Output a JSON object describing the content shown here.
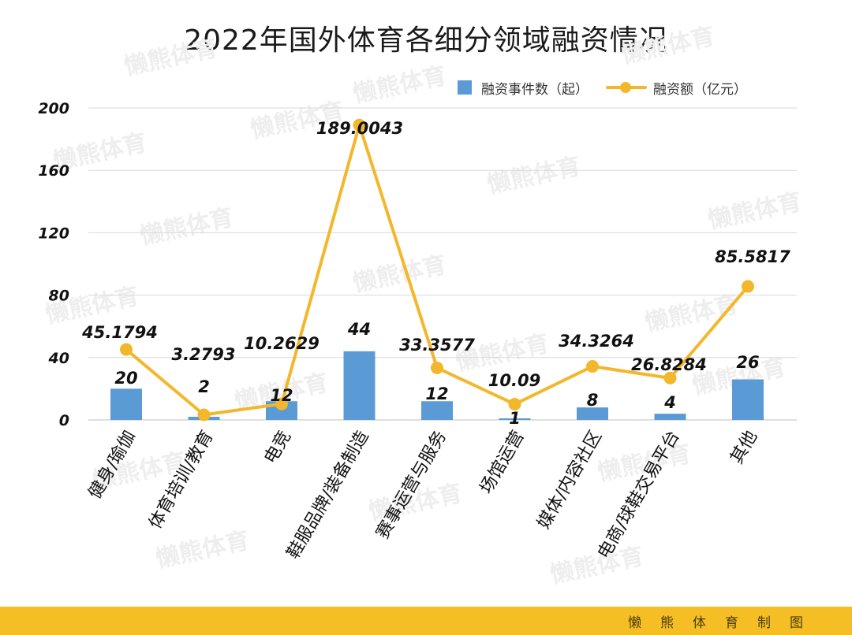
{
  "colors": {
    "bar": "#5b9bd5",
    "line": "#f3b72b",
    "grid": "#d9d9d9",
    "footer_bg": "#f5be24",
    "watermark": "#eeeeee"
  },
  "footer": {
    "credit": "懒熊体育制图"
  },
  "watermark": {
    "text": "懒熊体育"
  },
  "chart_data": {
    "type": "bar",
    "title": "2022年国外体育各细分领域融资情况",
    "legend_position": "top-right",
    "grid": true,
    "ylim": [
      0,
      200
    ],
    "yticks": [
      "0",
      "40",
      "80",
      "120",
      "160",
      "200"
    ],
    "categories": [
      "健身/瑜伽",
      "体育培训/教育",
      "电竞",
      "鞋服品牌/装备制造",
      "赛事运营与服务",
      "场馆运营",
      "媒体/内容社区",
      "电商/球鞋交易平台",
      "其他"
    ],
    "series": [
      {
        "name": "融资事件数（起）",
        "type": "bar",
        "values": [
          20,
          2,
          12,
          44,
          12,
          1,
          8,
          4,
          26
        ],
        "labels": [
          "20",
          "2",
          "12",
          "44",
          "12",
          "1",
          "8",
          "4",
          "26"
        ]
      },
      {
        "name": "融资额（亿元）",
        "type": "line",
        "values": [
          45.1794,
          3.2793,
          10.2629,
          189.0043,
          33.3577,
          10.09,
          34.3264,
          26.8284,
          85.5817
        ],
        "labels": [
          "45.1794",
          "3.2793",
          "10.2629",
          "189.0043",
          "33.3577",
          "10.09",
          "34.3264",
          "26.8284",
          "85.5817"
        ]
      }
    ]
  }
}
